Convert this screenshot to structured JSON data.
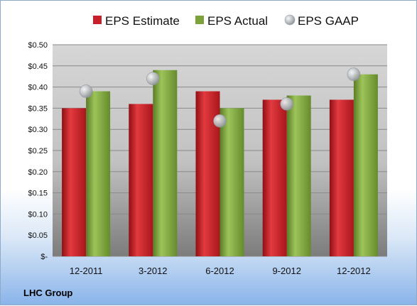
{
  "chart_data": {
    "type": "bar",
    "categories": [
      "12-2011",
      "3-2012",
      "6-2012",
      "9-2012",
      "12-2012"
    ],
    "series": [
      {
        "name": "EPS Estimate",
        "kind": "bar",
        "color": "#c8202a",
        "values": [
          0.35,
          0.36,
          0.39,
          0.37,
          0.37
        ]
      },
      {
        "name": "EPS Actual",
        "kind": "bar",
        "color": "#7da23c",
        "values": [
          0.39,
          0.44,
          0.35,
          0.38,
          0.43
        ]
      },
      {
        "name": "EPS GAAP",
        "kind": "marker",
        "color": "#b8bcc2",
        "values": [
          0.39,
          0.42,
          0.32,
          0.36,
          0.43
        ]
      }
    ],
    "ylim": [
      0,
      0.5
    ],
    "yticks": [
      "$-",
      "$0.05",
      "$0.10",
      "$0.15",
      "$0.20",
      "$0.25",
      "$0.30",
      "$0.35",
      "$0.40",
      "$0.45",
      "$0.50"
    ],
    "grid": true,
    "legend_position": "top"
  },
  "footer_label": "LHC Group"
}
